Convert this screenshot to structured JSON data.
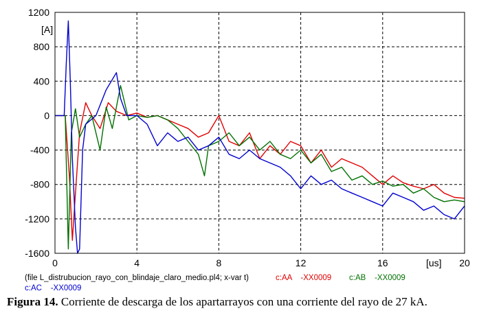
{
  "caption": {
    "label": "Figura 14.",
    "text": "Corriente de descarga de los apartarrayos con una corriente del rayo de 27 kA."
  },
  "chart_data": {
    "type": "line",
    "x_unit": "[us]",
    "y_unit": "[A]",
    "xlim": [
      0,
      20
    ],
    "ylim": [
      -1600,
      1200
    ],
    "x_ticks": [
      0,
      4,
      8,
      12,
      16,
      20
    ],
    "y_ticks": [
      1200,
      800,
      400,
      0,
      -400,
      -800,
      -1200,
      -1600
    ],
    "grid": true,
    "grid_style": "dashed",
    "footer": {
      "file_text": "(file L_distrubucion_rayo_con_blindaje_claro_medio.pl4; x-var t)",
      "series_labels": [
        {
          "text": "c:AA    -XX0009",
          "color": "#e00000"
        },
        {
          "text": "c:AB    -XX0009",
          "color": "#007000"
        },
        {
          "text": "c:AC    -XX0009",
          "color": "#0000d0"
        }
      ]
    },
    "series": [
      {
        "color": "#e00000",
        "x": [
          0,
          0.5,
          0.7,
          0.85,
          1.0,
          1.2,
          1.5,
          1.8,
          2.2,
          2.6,
          3.0,
          3.5,
          4.0,
          4.5,
          5.0,
          5.5,
          6.0,
          6.5,
          7.0,
          7.5,
          8.0,
          8.5,
          9.0,
          9.5,
          10.0,
          10.5,
          11.0,
          11.5,
          12.0,
          12.5,
          13.0,
          13.5,
          14.0,
          14.5,
          15.0,
          15.5,
          16.0,
          16.5,
          17.0,
          17.5,
          18.0,
          18.5,
          19.0,
          19.5,
          20.0
        ],
        "y": [
          0,
          0,
          -700,
          -1450,
          -900,
          -200,
          150,
          0,
          -150,
          150,
          50,
          0,
          30,
          -20,
          0,
          -50,
          -100,
          -150,
          -250,
          -200,
          0,
          -300,
          -350,
          -200,
          -500,
          -350,
          -450,
          -300,
          -350,
          -550,
          -400,
          -600,
          -500,
          -550,
          -600,
          -700,
          -800,
          -700,
          -780,
          -820,
          -850,
          -800,
          -900,
          -950,
          -960
        ]
      },
      {
        "color": "#007000",
        "x": [
          0,
          0.5,
          0.65,
          0.8,
          1.0,
          1.2,
          1.5,
          1.8,
          2.2,
          2.5,
          2.8,
          3.2,
          3.6,
          4.0,
          4.5,
          5.0,
          5.5,
          6.0,
          6.5,
          7.0,
          7.3,
          7.5,
          8.0,
          8.5,
          9.0,
          9.5,
          10.0,
          10.5,
          11.0,
          11.5,
          12.0,
          12.5,
          13.0,
          13.5,
          14.0,
          14.5,
          15.0,
          15.5,
          16.0,
          16.5,
          17.0,
          17.5,
          18.0,
          18.5,
          19.0,
          19.5,
          20.0
        ],
        "y": [
          0,
          0,
          -1550,
          -200,
          80,
          -250,
          -100,
          0,
          -400,
          100,
          -150,
          350,
          -50,
          0,
          -20,
          0,
          -50,
          -150,
          -300,
          -450,
          -700,
          -350,
          -300,
          -200,
          -350,
          -250,
          -400,
          -300,
          -450,
          -500,
          -400,
          -550,
          -450,
          -650,
          -600,
          -750,
          -700,
          -800,
          -760,
          -820,
          -800,
          -900,
          -850,
          -950,
          -1000,
          -980,
          -1000
        ]
      },
      {
        "color": "#0000d0",
        "x": [
          0,
          0.45,
          0.55,
          0.65,
          0.75,
          0.85,
          1.0,
          1.1,
          1.2,
          1.35,
          1.5,
          2.0,
          2.5,
          3.0,
          3.2,
          3.5,
          4.0,
          4.5,
          5.0,
          5.5,
          6.0,
          6.5,
          7.0,
          7.5,
          8.0,
          8.5,
          9.0,
          9.5,
          10.0,
          10.5,
          11.0,
          11.5,
          12.0,
          12.5,
          13.0,
          13.5,
          14.0,
          14.5,
          15.0,
          15.5,
          16.0,
          16.5,
          17.0,
          17.5,
          18.0,
          18.5,
          19.0,
          19.5,
          20.0
        ],
        "y": [
          0,
          0,
          600,
          1100,
          400,
          -500,
          -1300,
          -1600,
          -1550,
          -400,
          -100,
          0,
          300,
          500,
          200,
          0,
          0,
          -100,
          -350,
          -200,
          -300,
          -250,
          -400,
          -350,
          -250,
          -450,
          -500,
          -400,
          -500,
          -550,
          -600,
          -700,
          -850,
          -700,
          -800,
          -750,
          -850,
          -900,
          -950,
          -1000,
          -1050,
          -900,
          -950,
          -1000,
          -1100,
          -1050,
          -1150,
          -1200,
          -1050
        ]
      }
    ]
  }
}
